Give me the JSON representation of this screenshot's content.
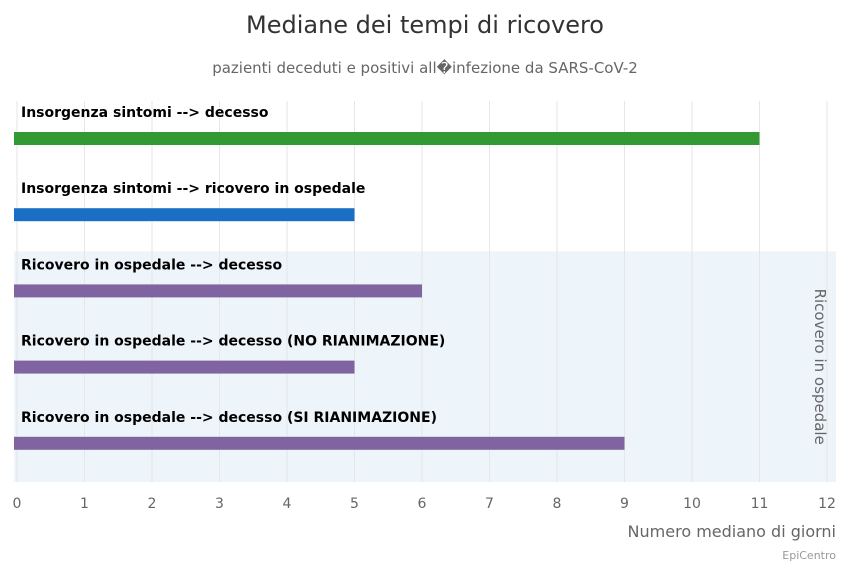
{
  "chart_data": {
    "type": "bar",
    "orientation": "horizontal",
    "title": "Mediane dei tempi di ricovero",
    "subtitle": "pazienti deceduti e positivi all�infezione da SARS-CoV-2",
    "categories": [
      "Insorgenza sintomi --> decesso",
      "Insorgenza sintomi --> ricovero in ospedale",
      "Ricovero in ospedale --> decesso",
      "Ricovero in ospedale --> decesso (NO RIANIMAZIONE)",
      "Ricovero in ospedale --> decesso (SI RIANIMAZIONE)"
    ],
    "values": [
      11,
      5,
      6,
      5,
      9
    ],
    "colors": [
      "#339933",
      "#1a6fc4",
      "#8064a2",
      "#8064a2",
      "#8064a2"
    ],
    "xlabel": "Numero mediano di giorni",
    "xlim": [
      0,
      12
    ],
    "xticks": [
      0,
      1,
      2,
      3,
      4,
      5,
      6,
      7,
      8,
      9,
      10,
      11,
      12
    ],
    "grid": true,
    "plot_band": {
      "label": "Ricovero in ospedale",
      "from_category": 2,
      "to_category": 4,
      "color": "#edf4fa"
    },
    "credits": "EpiCentro"
  }
}
